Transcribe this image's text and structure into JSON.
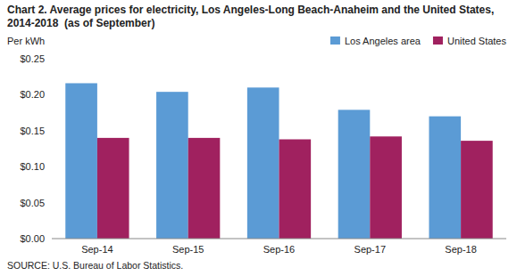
{
  "chart_data": {
    "type": "bar",
    "title": "Chart 2. Average prices for electricity, Los Angeles-Long Beach-Anaheim and the United States, 2014-2018  (as of September)",
    "y_label": "Per kWh",
    "annotations": [
      "SOURCE: U.S. Bureau of Labor Statistics."
    ],
    "categories": [
      "Sep-14",
      "Sep-15",
      "Sep-16",
      "Sep-17",
      "Sep-18"
    ],
    "series": [
      {
        "name": "Los Angeles area",
        "color": "#5B9BD5",
        "values": [
          0.216,
          0.204,
          0.21,
          0.179,
          0.17
        ]
      },
      {
        "name": "United States",
        "color": "#A0215F",
        "values": [
          0.14,
          0.14,
          0.138,
          0.142,
          0.136
        ]
      }
    ],
    "ylim": [
      0.0,
      0.25
    ],
    "yticks": [
      {
        "value": 0.0,
        "label": "$0.00"
      },
      {
        "value": 0.05,
        "label": "$0.05"
      },
      {
        "value": 0.1,
        "label": "$0.10"
      },
      {
        "value": 0.15,
        "label": "$0.15"
      },
      {
        "value": 0.2,
        "label": "$0.20"
      },
      {
        "value": 0.25,
        "label": "$0.25"
      }
    ],
    "grid": false,
    "legend": "top-right"
  }
}
